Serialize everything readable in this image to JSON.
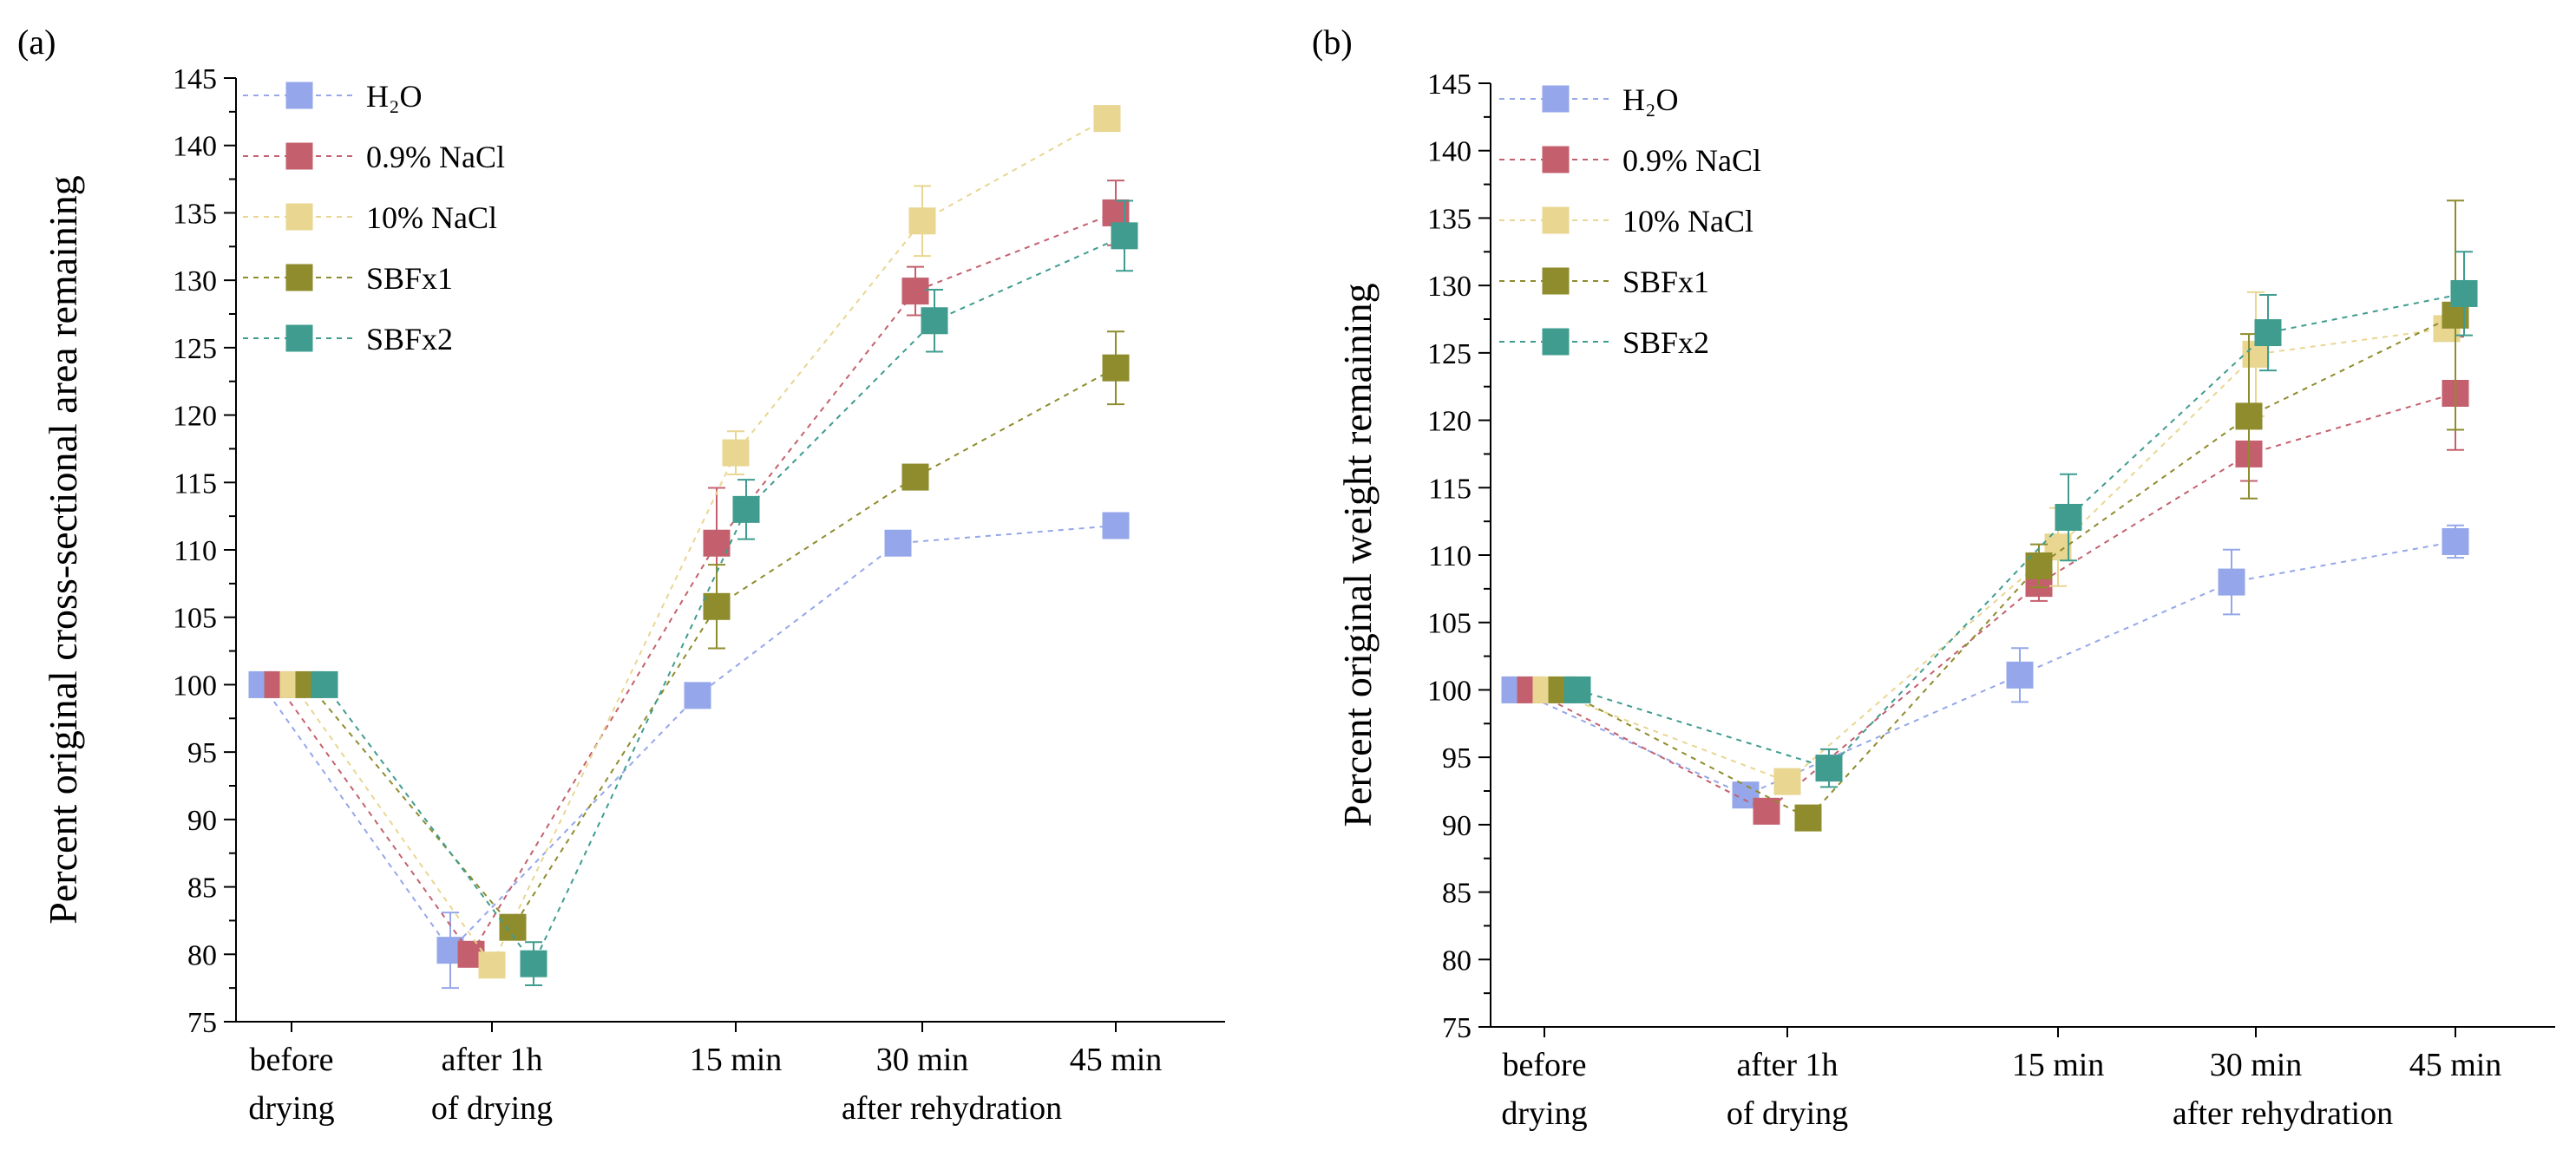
{
  "chart_data": [
    {
      "type": "line",
      "panel_label": "(a)",
      "ylabel": "Percent original cross-sectional area remaining",
      "ylim": [
        75,
        145
      ],
      "yticks": [
        75,
        80,
        85,
        90,
        95,
        100,
        105,
        110,
        115,
        120,
        125,
        130,
        135,
        140,
        145
      ],
      "categories": [
        {
          "line1": "before",
          "line2": "drying"
        },
        {
          "line1": "after 1h",
          "line2": "of drying"
        },
        {
          "line1": "15 min",
          "line2": ""
        },
        {
          "line1": "30 min",
          "line2": ""
        },
        {
          "line1": "45 min",
          "line2": ""
        }
      ],
      "group_label": "after rehydration",
      "legend": "top-left",
      "series": [
        {
          "name": "H₂O",
          "color": "#95a7ea",
          "values": [
            100,
            80.3,
            99.2,
            110.5,
            111.8
          ],
          "err": [
            0,
            2.8,
            0,
            0,
            0
          ]
        },
        {
          "name": "0.9% NaCl",
          "color": "#c4606e",
          "values": [
            100,
            80,
            110.5,
            129.2,
            135
          ],
          "err": [
            0,
            0,
            4.1,
            1.8,
            2.4
          ]
        },
        {
          "name": "10% NaCl",
          "color": "#e8d691",
          "values": [
            100,
            79.2,
            117.2,
            134.4,
            142
          ],
          "err": [
            0,
            0,
            1.6,
            2.6,
            0.8
          ]
        },
        {
          "name": "SBFx1",
          "color": "#8e8c2c",
          "values": [
            100,
            82,
            105.8,
            115.4,
            123.5
          ],
          "err": [
            0,
            0,
            3.1,
            0.9,
            2.7
          ]
        },
        {
          "name": "SBFx2",
          "color": "#3f9c8f",
          "values": [
            100,
            79.3,
            113,
            127,
            133.3
          ],
          "err": [
            0,
            1.6,
            2.2,
            2.3,
            2.6
          ]
        }
      ]
    },
    {
      "type": "line",
      "panel_label": "(b)",
      "ylabel": "Percent original weight remaining",
      "ylim": [
        75,
        145
      ],
      "yticks": [
        75,
        80,
        85,
        90,
        95,
        100,
        105,
        110,
        115,
        120,
        125,
        130,
        135,
        140,
        145
      ],
      "categories": [
        {
          "line1": "before",
          "line2": "drying"
        },
        {
          "line1": "after 1h",
          "line2": "of drying"
        },
        {
          "line1": "15 min",
          "line2": ""
        },
        {
          "line1": "30 min",
          "line2": ""
        },
        {
          "line1": "45 min",
          "line2": ""
        }
      ],
      "group_label": "after rehydration",
      "legend": "top-left",
      "series": [
        {
          "name": "H₂O",
          "color": "#95a7ea",
          "values": [
            100,
            92.2,
            101.1,
            108,
            111
          ],
          "err": [
            0,
            0,
            2,
            2.4,
            1.2
          ]
        },
        {
          "name": "0.9% NaCl",
          "color": "#c4606e",
          "values": [
            100,
            91,
            107.9,
            117.5,
            122
          ],
          "err": [
            0,
            0,
            1.3,
            2,
            4.2
          ]
        },
        {
          "name": "10% NaCl",
          "color": "#e8d691",
          "values": [
            100,
            93.2,
            110.6,
            124.9,
            126.8
          ],
          "err": [
            0,
            0,
            2.9,
            4.6,
            0
          ]
        },
        {
          "name": "SBFx1",
          "color": "#8e8c2c",
          "values": [
            100,
            90.5,
            109.2,
            120.3,
            127.8
          ],
          "err": [
            0,
            0,
            1.6,
            6.1,
            8.5
          ]
        },
        {
          "name": "SBFx2",
          "color": "#3f9c8f",
          "values": [
            100,
            94.2,
            112.8,
            126.5,
            129.4
          ],
          "err": [
            0,
            1.4,
            3.2,
            2.8,
            3.1
          ]
        }
      ]
    }
  ]
}
